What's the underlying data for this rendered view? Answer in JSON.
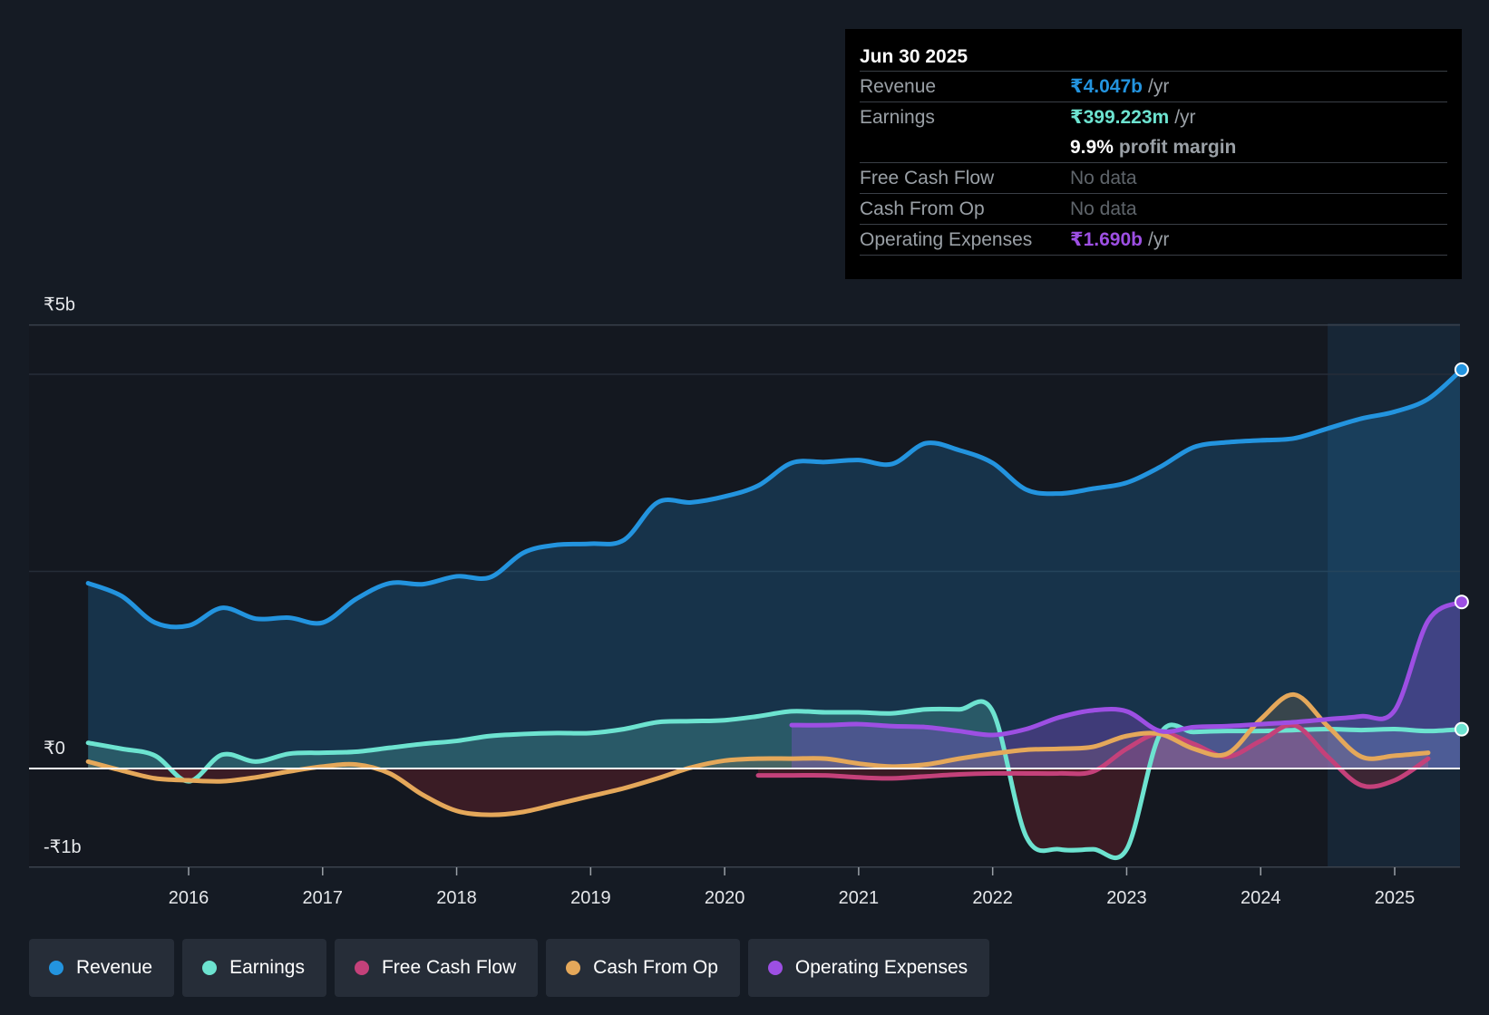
{
  "tooltip": {
    "date": "Jun 30 2025",
    "revenue_label": "Revenue",
    "revenue_value": "₹4.047b",
    "earnings_label": "Earnings",
    "earnings_value": "₹399.223m",
    "margin_value": "9.9%",
    "margin_text": "profit margin",
    "fcf_label": "Free Cash Flow",
    "fcf_value": "No data",
    "cfo_label": "Cash From Op",
    "cfo_value": "No data",
    "opex_label": "Operating Expenses",
    "opex_value": "₹1.690b",
    "unit": "/yr"
  },
  "legend": [
    {
      "label": "Revenue",
      "color": "#2394df"
    },
    {
      "label": "Earnings",
      "color": "#6de3d0"
    },
    {
      "label": "Free Cash Flow",
      "color": "#c4417a"
    },
    {
      "label": "Cash From Op",
      "color": "#e5a85a"
    },
    {
      "label": "Operating Expenses",
      "color": "#9d4fe3"
    }
  ],
  "chart_data": {
    "type": "area",
    "title": "",
    "xlabel": "",
    "ylabel": "",
    "y_tick_labels": [
      "₹5b",
      "₹0",
      "-₹1b"
    ],
    "x_tick_labels": [
      "2016",
      "2017",
      "2018",
      "2019",
      "2020",
      "2021",
      "2022",
      "2023",
      "2024",
      "2025"
    ],
    "ylim": [
      -1.0,
      4.5
    ],
    "xlim": [
      2015.0,
      2025.5
    ],
    "forecast_region_start": 2024.5,
    "series": [
      {
        "name": "Revenue",
        "color": "#2394df",
        "unit": "₹b",
        "points": [
          [
            2015.25,
            1.88
          ],
          [
            2015.5,
            1.75
          ],
          [
            2015.75,
            1.48
          ],
          [
            2016.0,
            1.45
          ],
          [
            2016.25,
            1.63
          ],
          [
            2016.5,
            1.52
          ],
          [
            2016.75,
            1.53
          ],
          [
            2017.0,
            1.48
          ],
          [
            2017.25,
            1.72
          ],
          [
            2017.5,
            1.88
          ],
          [
            2017.75,
            1.87
          ],
          [
            2018.0,
            1.95
          ],
          [
            2018.25,
            1.94
          ],
          [
            2018.5,
            2.19
          ],
          [
            2018.75,
            2.27
          ],
          [
            2019.0,
            2.28
          ],
          [
            2019.25,
            2.32
          ],
          [
            2019.5,
            2.7
          ],
          [
            2019.75,
            2.7
          ],
          [
            2020.0,
            2.76
          ],
          [
            2020.25,
            2.87
          ],
          [
            2020.5,
            3.1
          ],
          [
            2020.75,
            3.11
          ],
          [
            2021.0,
            3.13
          ],
          [
            2021.25,
            3.09
          ],
          [
            2021.5,
            3.3
          ],
          [
            2021.75,
            3.23
          ],
          [
            2022.0,
            3.1
          ],
          [
            2022.25,
            2.83
          ],
          [
            2022.5,
            2.79
          ],
          [
            2022.75,
            2.84
          ],
          [
            2023.0,
            2.9
          ],
          [
            2023.25,
            3.06
          ],
          [
            2023.5,
            3.26
          ],
          [
            2023.75,
            3.31
          ],
          [
            2024.0,
            3.33
          ],
          [
            2024.25,
            3.35
          ],
          [
            2024.5,
            3.45
          ],
          [
            2024.75,
            3.55
          ],
          [
            2025.0,
            3.62
          ],
          [
            2025.25,
            3.75
          ],
          [
            2025.5,
            4.047
          ]
        ]
      },
      {
        "name": "Earnings",
        "color": "#6de3d0",
        "unit": "₹b",
        "points": [
          [
            2015.25,
            0.26
          ],
          [
            2015.5,
            0.2
          ],
          [
            2015.75,
            0.13
          ],
          [
            2016.0,
            -0.13
          ],
          [
            2016.25,
            0.14
          ],
          [
            2016.5,
            0.07
          ],
          [
            2016.75,
            0.15
          ],
          [
            2017.0,
            0.16
          ],
          [
            2017.25,
            0.17
          ],
          [
            2017.5,
            0.21
          ],
          [
            2017.75,
            0.25
          ],
          [
            2018.0,
            0.28
          ],
          [
            2018.25,
            0.33
          ],
          [
            2018.5,
            0.35
          ],
          [
            2018.75,
            0.36
          ],
          [
            2019.0,
            0.36
          ],
          [
            2019.25,
            0.4
          ],
          [
            2019.5,
            0.47
          ],
          [
            2019.75,
            0.48
          ],
          [
            2020.0,
            0.49
          ],
          [
            2020.25,
            0.53
          ],
          [
            2020.5,
            0.58
          ],
          [
            2020.75,
            0.57
          ],
          [
            2021.0,
            0.57
          ],
          [
            2021.25,
            0.56
          ],
          [
            2021.5,
            0.6
          ],
          [
            2021.75,
            0.6
          ],
          [
            2022.0,
            0.58
          ],
          [
            2022.25,
            -0.69
          ],
          [
            2022.5,
            -0.82
          ],
          [
            2022.75,
            -0.82
          ],
          [
            2023.0,
            -0.82
          ],
          [
            2023.25,
            0.35
          ],
          [
            2023.5,
            0.37
          ],
          [
            2023.75,
            0.38
          ],
          [
            2024.0,
            0.38
          ],
          [
            2024.25,
            0.39
          ],
          [
            2024.5,
            0.4
          ],
          [
            2024.75,
            0.39
          ],
          [
            2025.0,
            0.4
          ],
          [
            2025.25,
            0.38
          ],
          [
            2025.5,
            0.399
          ]
        ]
      },
      {
        "name": "Free Cash Flow",
        "color": "#c4417a",
        "unit": "₹b",
        "points": [
          [
            2020.25,
            -0.07
          ],
          [
            2020.5,
            -0.07
          ],
          [
            2020.75,
            -0.07
          ],
          [
            2021.0,
            -0.09
          ],
          [
            2021.25,
            -0.1
          ],
          [
            2021.5,
            -0.08
          ],
          [
            2021.75,
            -0.06
          ],
          [
            2022.0,
            -0.05
          ],
          [
            2022.25,
            -0.05
          ],
          [
            2022.5,
            -0.05
          ],
          [
            2022.75,
            -0.03
          ],
          [
            2023.0,
            0.2
          ],
          [
            2023.25,
            0.36
          ],
          [
            2023.5,
            0.25
          ],
          [
            2023.75,
            0.12
          ],
          [
            2024.0,
            0.28
          ],
          [
            2024.25,
            0.44
          ],
          [
            2024.5,
            0.12
          ],
          [
            2024.75,
            -0.17
          ],
          [
            2025.0,
            -0.12
          ],
          [
            2025.25,
            0.1
          ]
        ]
      },
      {
        "name": "Cash From Op",
        "color": "#e5a85a",
        "unit": "₹b",
        "points": [
          [
            2015.25,
            0.07
          ],
          [
            2015.5,
            -0.02
          ],
          [
            2015.75,
            -0.1
          ],
          [
            2016.0,
            -0.12
          ],
          [
            2016.25,
            -0.13
          ],
          [
            2016.5,
            -0.09
          ],
          [
            2016.75,
            -0.03
          ],
          [
            2017.0,
            0.02
          ],
          [
            2017.25,
            0.04
          ],
          [
            2017.5,
            -0.05
          ],
          [
            2017.75,
            -0.27
          ],
          [
            2018.0,
            -0.43
          ],
          [
            2018.25,
            -0.47
          ],
          [
            2018.5,
            -0.44
          ],
          [
            2018.75,
            -0.36
          ],
          [
            2019.0,
            -0.28
          ],
          [
            2019.25,
            -0.2
          ],
          [
            2019.5,
            -0.1
          ],
          [
            2019.75,
            0.01
          ],
          [
            2020.0,
            0.08
          ],
          [
            2020.25,
            0.1
          ],
          [
            2020.5,
            0.1
          ],
          [
            2020.75,
            0.1
          ],
          [
            2021.0,
            0.05
          ],
          [
            2021.25,
            0.02
          ],
          [
            2021.5,
            0.04
          ],
          [
            2021.75,
            0.1
          ],
          [
            2022.0,
            0.15
          ],
          [
            2022.25,
            0.19
          ],
          [
            2022.5,
            0.2
          ],
          [
            2022.75,
            0.22
          ],
          [
            2023.0,
            0.33
          ],
          [
            2023.25,
            0.35
          ],
          [
            2023.5,
            0.2
          ],
          [
            2023.75,
            0.15
          ],
          [
            2024.0,
            0.5
          ],
          [
            2024.25,
            0.75
          ],
          [
            2024.5,
            0.43
          ],
          [
            2024.75,
            0.12
          ],
          [
            2025.0,
            0.13
          ],
          [
            2025.25,
            0.16
          ]
        ]
      },
      {
        "name": "Operating Expenses",
        "color": "#9d4fe3",
        "unit": "₹b",
        "points": [
          [
            2020.5,
            0.44
          ],
          [
            2020.75,
            0.44
          ],
          [
            2021.0,
            0.45
          ],
          [
            2021.25,
            0.43
          ],
          [
            2021.5,
            0.42
          ],
          [
            2021.75,
            0.38
          ],
          [
            2022.0,
            0.34
          ],
          [
            2022.25,
            0.4
          ],
          [
            2022.5,
            0.52
          ],
          [
            2022.75,
            0.59
          ],
          [
            2023.0,
            0.58
          ],
          [
            2023.25,
            0.38
          ],
          [
            2023.5,
            0.42
          ],
          [
            2023.75,
            0.43
          ],
          [
            2024.0,
            0.45
          ],
          [
            2024.25,
            0.47
          ],
          [
            2024.5,
            0.5
          ],
          [
            2024.75,
            0.53
          ],
          [
            2025.0,
            0.59
          ],
          [
            2025.25,
            1.5
          ],
          [
            2025.5,
            1.69
          ]
        ]
      }
    ]
  }
}
